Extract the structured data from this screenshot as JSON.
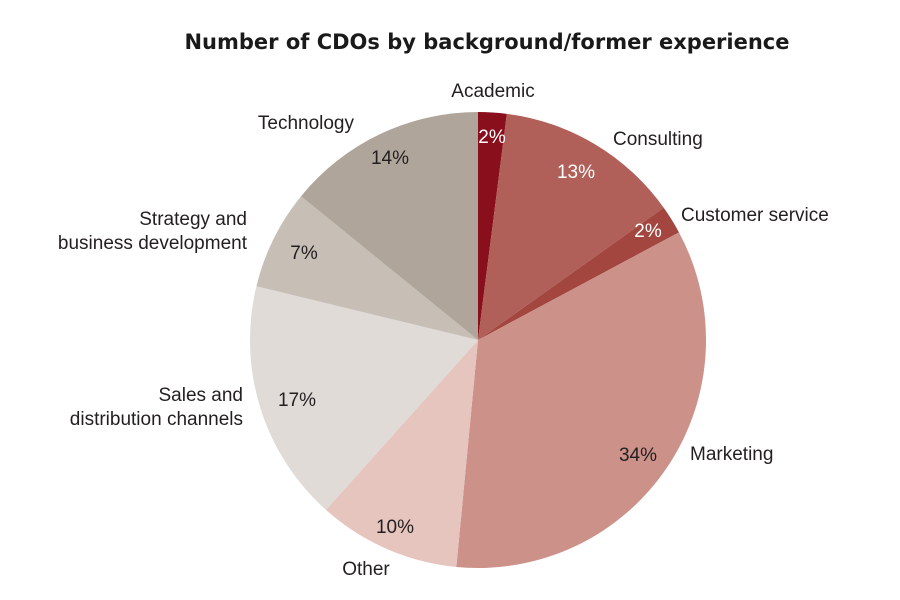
{
  "chart_data": {
    "type": "pie",
    "title": "Number of CDOs by background/former experience",
    "start": "12 o'clock, clockwise",
    "slices": [
      {
        "label": "Academic",
        "value": 2,
        "display": "2%",
        "color": "#8a0f1c",
        "text_color": "#ffffff"
      },
      {
        "label": "Consulting",
        "value": 13,
        "display": "13%",
        "color": "#b06058",
        "text_color": "#ffffff"
      },
      {
        "label": "Customer service",
        "value": 2,
        "display": "2%",
        "color": "#a2463f",
        "text_color": "#ffffff"
      },
      {
        "label": "Marketing",
        "value": 34,
        "display": "34%",
        "color": "#cc9188",
        "text_color": "#231f20"
      },
      {
        "label": "Other",
        "value": 10,
        "display": "10%",
        "color": "#e6c5bf",
        "text_color": "#231f20"
      },
      {
        "label": "Sales and distribution channels",
        "value": 17,
        "display": "17%",
        "color": "#e0dbd6",
        "text_color": "#231f20"
      },
      {
        "label": "Strategy and business development",
        "value": 7,
        "display": "7%",
        "color": "#c7beb5",
        "text_color": "#231f20"
      },
      {
        "label": "Technology",
        "value": 14,
        "display": "14%",
        "color": "#afa59b",
        "text_color": "#231f20"
      }
    ]
  }
}
